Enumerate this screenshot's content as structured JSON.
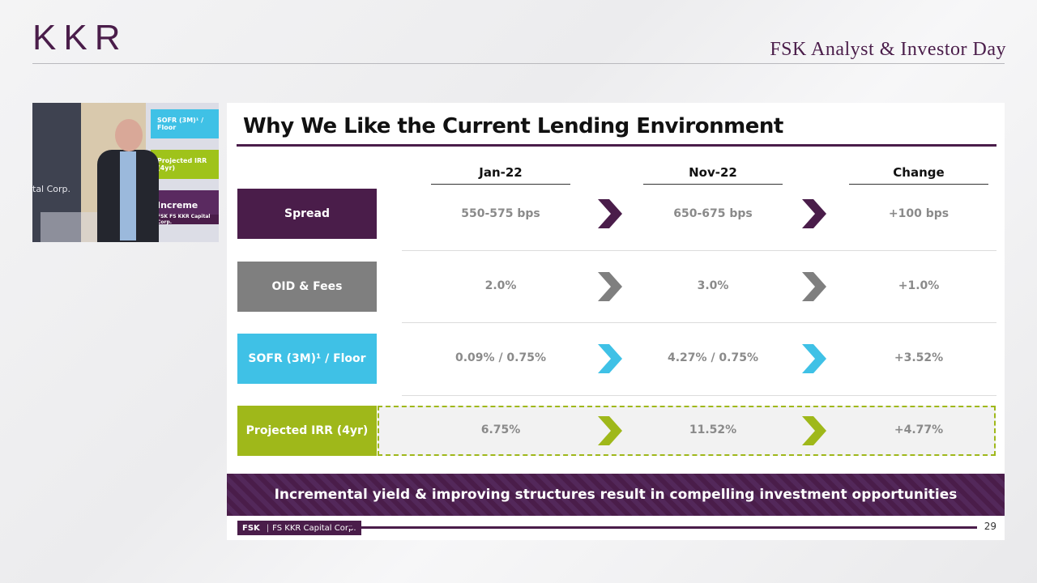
{
  "header": {
    "logo": "KKR",
    "event_title": "FSK Analyst & Investor Day"
  },
  "video": {
    "panel_1": "SOFR (3M)¹ / Floor",
    "panel_2": "Projected IRR (4yr)",
    "panel_3": "Increme",
    "panel_4": "FSK FS KKR Capital Corp.",
    "side_text": "tal Corp."
  },
  "slide": {
    "title": "Why We Like the Current Lending Environment",
    "columns": [
      "Jan-22",
      "Nov-22",
      "Change"
    ],
    "rows": [
      {
        "label": "Spread",
        "jan": "550-575 bps",
        "nov": "650-675 bps",
        "change": "+100 bps",
        "color": "#4a1d4a"
      },
      {
        "label": "OID & Fees",
        "jan": "2.0%",
        "nov": "3.0%",
        "change": "+1.0%",
        "color": "#7f7f7f"
      },
      {
        "label": "SOFR (3M)¹ / Floor",
        "jan": "0.09% / 0.75%",
        "nov": "4.27% / 0.75%",
        "change": "+3.52%",
        "color": "#3fc1e6"
      },
      {
        "label": "Projected IRR (4yr)",
        "jan": "6.75%",
        "nov": "11.52%",
        "change": "+4.77%",
        "color": "#9fb81a"
      }
    ],
    "banner": "Incremental yield & improving structures result in compelling investment opportunities",
    "footer_fsk": "FSK",
    "footer_company": "FS KKR Capital Corp.",
    "page_number": "29"
  }
}
